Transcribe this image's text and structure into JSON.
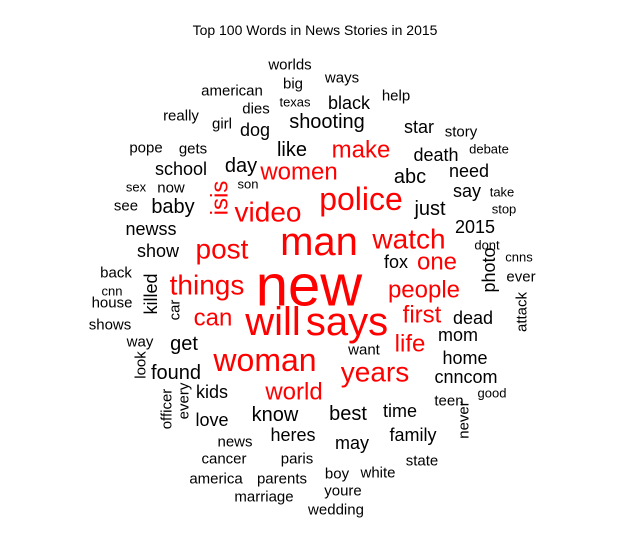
{
  "chart_data": {
    "type": "wordcloud",
    "title": "Top 100 Words in News Stories in 2015",
    "colors": {
      "top": "#ff0000",
      "other": "#000000"
    },
    "words": [
      {
        "text": "new",
        "size": 10,
        "color": "red",
        "rotate": 0
      },
      {
        "text": "man",
        "size": 8,
        "color": "red",
        "rotate": 0
      },
      {
        "text": "will",
        "size": 8,
        "color": "red",
        "rotate": 0
      },
      {
        "text": "says",
        "size": 8,
        "color": "red",
        "rotate": 0
      },
      {
        "text": "police",
        "size": 7,
        "color": "red",
        "rotate": 0
      },
      {
        "text": "woman",
        "size": 7,
        "color": "red",
        "rotate": 0
      },
      {
        "text": "video",
        "size": 6,
        "color": "red",
        "rotate": 0
      },
      {
        "text": "watch",
        "size": 6,
        "color": "red",
        "rotate": 0
      },
      {
        "text": "things",
        "size": 6,
        "color": "red",
        "rotate": 0
      },
      {
        "text": "post",
        "size": 6,
        "color": "red",
        "rotate": 0
      },
      {
        "text": "years",
        "size": 6,
        "color": "red",
        "rotate": 0
      },
      {
        "text": "world",
        "size": 5,
        "color": "red",
        "rotate": 0
      },
      {
        "text": "make",
        "size": 5,
        "color": "red",
        "rotate": 0
      },
      {
        "text": "women",
        "size": 5,
        "color": "red",
        "rotate": 0
      },
      {
        "text": "people",
        "size": 5,
        "color": "red",
        "rotate": 0
      },
      {
        "text": "one",
        "size": 5,
        "color": "red",
        "rotate": 0
      },
      {
        "text": "can",
        "size": 5,
        "color": "red",
        "rotate": 0
      },
      {
        "text": "first",
        "size": 5,
        "color": "red",
        "rotate": 0
      },
      {
        "text": "life",
        "size": 5,
        "color": "red",
        "rotate": 0
      },
      {
        "text": "isis",
        "size": 5,
        "color": "red",
        "rotate": -90
      },
      {
        "text": "shooting",
        "size": 4,
        "color": "black",
        "rotate": 0
      },
      {
        "text": "like",
        "size": 4,
        "color": "black",
        "rotate": 0
      },
      {
        "text": "day",
        "size": 4,
        "color": "black",
        "rotate": 0
      },
      {
        "text": "abc",
        "size": 4,
        "color": "black",
        "rotate": 0
      },
      {
        "text": "know",
        "size": 4,
        "color": "black",
        "rotate": 0
      },
      {
        "text": "best",
        "size": 4,
        "color": "black",
        "rotate": 0
      },
      {
        "text": "baby",
        "size": 4,
        "color": "black",
        "rotate": 0
      },
      {
        "text": "get",
        "size": 4,
        "color": "black",
        "rotate": 0
      },
      {
        "text": "found",
        "size": 4,
        "color": "black",
        "rotate": 0
      },
      {
        "text": "just",
        "size": 4,
        "color": "black",
        "rotate": 0
      },
      {
        "text": "school",
        "size": 3,
        "color": "black",
        "rotate": 0
      },
      {
        "text": "show",
        "size": 3,
        "color": "black",
        "rotate": 0
      },
      {
        "text": "newss",
        "size": 3,
        "color": "black",
        "rotate": 0
      },
      {
        "text": "fox",
        "size": 3,
        "color": "black",
        "rotate": 0
      },
      {
        "text": "2015",
        "size": 3,
        "color": "black",
        "rotate": 0
      },
      {
        "text": "dead",
        "size": 3,
        "color": "black",
        "rotate": 0
      },
      {
        "text": "mom",
        "size": 3,
        "color": "black",
        "rotate": 0
      },
      {
        "text": "home",
        "size": 3,
        "color": "black",
        "rotate": 0
      },
      {
        "text": "cnncom",
        "size": 3,
        "color": "black",
        "rotate": 0
      },
      {
        "text": "kids",
        "size": 3,
        "color": "black",
        "rotate": 0
      },
      {
        "text": "love",
        "size": 3,
        "color": "black",
        "rotate": 0
      },
      {
        "text": "time",
        "size": 3,
        "color": "black",
        "rotate": 0
      },
      {
        "text": "heres",
        "size": 3,
        "color": "black",
        "rotate": 0
      },
      {
        "text": "may",
        "size": 3,
        "color": "black",
        "rotate": 0
      },
      {
        "text": "family",
        "size": 3,
        "color": "black",
        "rotate": 0
      },
      {
        "text": "death",
        "size": 3,
        "color": "black",
        "rotate": 0
      },
      {
        "text": "star",
        "size": 3,
        "color": "black",
        "rotate": 0
      },
      {
        "text": "need",
        "size": 3,
        "color": "black",
        "rotate": 0
      },
      {
        "text": "say",
        "size": 3,
        "color": "black",
        "rotate": 0
      },
      {
        "text": "killed",
        "size": 3,
        "color": "black",
        "rotate": -90
      },
      {
        "text": "photo",
        "size": 3,
        "color": "black",
        "rotate": -90
      },
      {
        "text": "black",
        "size": 3,
        "color": "black",
        "rotate": 0
      },
      {
        "text": "dog",
        "size": 3,
        "color": "black",
        "rotate": 0
      },
      {
        "text": "way",
        "size": 2,
        "color": "black",
        "rotate": 0
      },
      {
        "text": "house",
        "size": 2,
        "color": "black",
        "rotate": 0
      },
      {
        "text": "back",
        "size": 2,
        "color": "black",
        "rotate": 0
      },
      {
        "text": "see",
        "size": 2,
        "color": "black",
        "rotate": 0
      },
      {
        "text": "now",
        "size": 2,
        "color": "black",
        "rotate": 0
      },
      {
        "text": "gets",
        "size": 2,
        "color": "black",
        "rotate": 0
      },
      {
        "text": "girl",
        "size": 2,
        "color": "black",
        "rotate": 0
      },
      {
        "text": "dies",
        "size": 2,
        "color": "black",
        "rotate": 0
      },
      {
        "text": "american",
        "size": 2,
        "color": "black",
        "rotate": 0
      },
      {
        "text": "big",
        "size": 2,
        "color": "black",
        "rotate": 0
      },
      {
        "text": "worlds",
        "size": 2,
        "color": "black",
        "rotate": 0
      },
      {
        "text": "ways",
        "size": 2,
        "color": "black",
        "rotate": 0
      },
      {
        "text": "help",
        "size": 2,
        "color": "black",
        "rotate": 0
      },
      {
        "text": "news",
        "size": 2,
        "color": "black",
        "rotate": 0
      },
      {
        "text": "cancer",
        "size": 2,
        "color": "black",
        "rotate": 0
      },
      {
        "text": "paris",
        "size": 2,
        "color": "black",
        "rotate": 0
      },
      {
        "text": "america",
        "size": 2,
        "color": "black",
        "rotate": 0
      },
      {
        "text": "parents",
        "size": 2,
        "color": "black",
        "rotate": 0
      },
      {
        "text": "boy",
        "size": 2,
        "color": "black",
        "rotate": 0
      },
      {
        "text": "white",
        "size": 2,
        "color": "black",
        "rotate": 0
      },
      {
        "text": "youre",
        "size": 2,
        "color": "black",
        "rotate": 0
      },
      {
        "text": "marriage",
        "size": 2,
        "color": "black",
        "rotate": 0
      },
      {
        "text": "wedding",
        "size": 2,
        "color": "black",
        "rotate": 0
      },
      {
        "text": "state",
        "size": 2,
        "color": "black",
        "rotate": 0
      },
      {
        "text": "teen",
        "size": 2,
        "color": "black",
        "rotate": 0
      },
      {
        "text": "want",
        "size": 2,
        "color": "black",
        "rotate": 0
      },
      {
        "text": "ever",
        "size": 2,
        "color": "black",
        "rotate": 0
      },
      {
        "text": "story",
        "size": 2,
        "color": "black",
        "rotate": 0
      },
      {
        "text": "pope",
        "size": 2,
        "color": "black",
        "rotate": 0
      },
      {
        "text": "really",
        "size": 2,
        "color": "black",
        "rotate": 0
      },
      {
        "text": "shows",
        "size": 2,
        "color": "black",
        "rotate": 0
      },
      {
        "text": "officer",
        "size": 2,
        "color": "black",
        "rotate": -90
      },
      {
        "text": "every",
        "size": 2,
        "color": "black",
        "rotate": -90
      },
      {
        "text": "look",
        "size": 2,
        "color": "black",
        "rotate": -90
      },
      {
        "text": "car",
        "size": 2,
        "color": "black",
        "rotate": -90
      },
      {
        "text": "never",
        "size": 2,
        "color": "black",
        "rotate": -90
      },
      {
        "text": "attack",
        "size": 2,
        "color": "black",
        "rotate": -90
      },
      {
        "text": "texas",
        "size": 1,
        "color": "black",
        "rotate": 0
      },
      {
        "text": "son",
        "size": 1,
        "color": "black",
        "rotate": 0
      },
      {
        "text": "sex",
        "size": 1,
        "color": "black",
        "rotate": 0
      },
      {
        "text": "cnn",
        "size": 1,
        "color": "black",
        "rotate": 0
      },
      {
        "text": "debate",
        "size": 1,
        "color": "black",
        "rotate": 0
      },
      {
        "text": "take",
        "size": 1,
        "color": "black",
        "rotate": 0
      },
      {
        "text": "stop",
        "size": 1,
        "color": "black",
        "rotate": 0
      },
      {
        "text": "dont",
        "size": 1,
        "color": "black",
        "rotate": 0
      },
      {
        "text": "cnns",
        "size": 1,
        "color": "black",
        "rotate": 0
      },
      {
        "text": "good",
        "size": 1,
        "color": "black",
        "rotate": 0
      }
    ]
  }
}
